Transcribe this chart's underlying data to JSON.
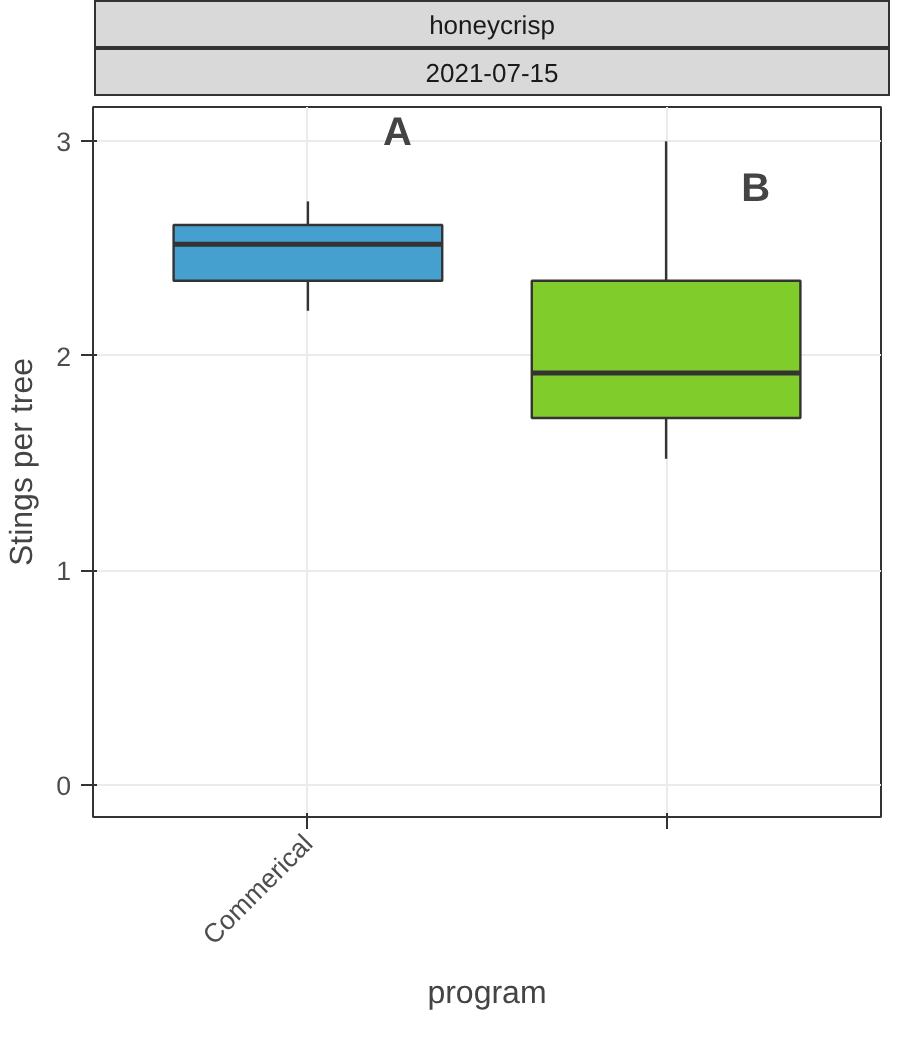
{
  "chart_data": {
    "type": "box",
    "title": "honeycrisp",
    "subtitle": "2021-07-15",
    "xlabel": "program",
    "ylabel": "Stings per tree",
    "categories": [
      "Commerical",
      null
    ],
    "boxes": [
      {
        "low": 2.21,
        "q1": 2.35,
        "median": 2.52,
        "q3": 2.61,
        "high": 2.72
      },
      {
        "low": 1.52,
        "q1": 1.71,
        "median": 1.92,
        "q3": 2.35,
        "high": 3.0
      }
    ],
    "colors": [
      "#46a0cf",
      "#80cc2a"
    ],
    "ylim": [
      -0.15,
      3.16
    ],
    "yticks": [
      0,
      1,
      2,
      3
    ],
    "grid": true,
    "annotations": [
      "A",
      "B"
    ]
  }
}
